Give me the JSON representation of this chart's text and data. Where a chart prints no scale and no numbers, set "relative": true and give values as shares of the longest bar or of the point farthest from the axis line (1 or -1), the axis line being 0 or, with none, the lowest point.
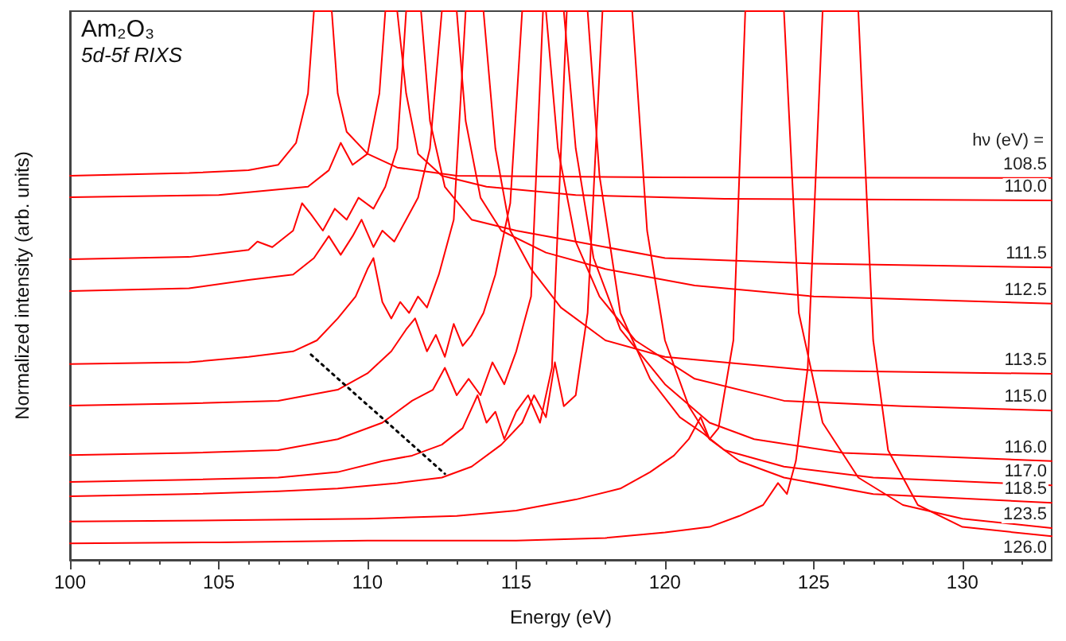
{
  "chart_data": {
    "type": "line",
    "title": "Am₂O₃",
    "subtitle": "5d-5f RIXS",
    "xlabel": "Energy (eV)",
    "ylabel": "Normalized intensity (arb. units)",
    "legend_title": "hν (eV) =",
    "relative": true,
    "xlim": [
      100,
      133
    ],
    "xticks": [
      100,
      105,
      110,
      115,
      120,
      125,
      130
    ],
    "grid": false,
    "marker": "none",
    "line_style": "solid",
    "series": [
      {
        "name": "108.5",
        "color": "#ff0000",
        "x": [
          100,
          104,
          106,
          107,
          107.6,
          108.0,
          108.2,
          108.8,
          109.0,
          109.3,
          110,
          111,
          113,
          120,
          133
        ],
        "values": [
          0.7,
          0.705,
          0.71,
          0.72,
          0.76,
          0.85,
          1.0,
          1.0,
          0.85,
          0.78,
          0.74,
          0.715,
          0.7,
          0.697,
          0.696
        ]
      },
      {
        "name": "110.0",
        "color": "#ff0000",
        "x": [
          100,
          105,
          108,
          108.7,
          109.1,
          109.5,
          110.0,
          110.4,
          110.6,
          111.0,
          111.3,
          111.7,
          112.5,
          114,
          117,
          122,
          133
        ],
        "values": [
          0.661,
          0.665,
          0.68,
          0.71,
          0.76,
          0.72,
          0.74,
          0.85,
          1.0,
          1.0,
          0.85,
          0.74,
          0.7,
          0.68,
          0.665,
          0.658,
          0.655
        ]
      },
      {
        "name": "111.5",
        "color": "#ff0000",
        "x": [
          100,
          104,
          106,
          106.3,
          106.8,
          107.5,
          107.8,
          108.1,
          108.5,
          108.9,
          109.3,
          109.7,
          110.2,
          110.6,
          111.0,
          111.3,
          111.8,
          112.1,
          112.6,
          113.5,
          115,
          117,
          120,
          125,
          133
        ],
        "values": [
          0.548,
          0.552,
          0.565,
          0.58,
          0.57,
          0.6,
          0.65,
          0.63,
          0.6,
          0.64,
          0.62,
          0.66,
          0.64,
          0.68,
          0.75,
          1.0,
          1.0,
          0.8,
          0.68,
          0.62,
          0.6,
          0.58,
          0.55,
          0.54,
          0.533
        ]
      },
      {
        "name": "112.5",
        "color": "#ff0000",
        "x": [
          100,
          104,
          106,
          107.5,
          108.2,
          108.7,
          109.1,
          109.5,
          109.8,
          110.2,
          110.5,
          110.9,
          111.3,
          111.7,
          112.1,
          112.5,
          113.0,
          113.3,
          113.8,
          114.5,
          116,
          118,
          121,
          125,
          133
        ],
        "values": [
          0.49,
          0.495,
          0.51,
          0.52,
          0.55,
          0.59,
          0.556,
          0.59,
          0.62,
          0.57,
          0.6,
          0.58,
          0.62,
          0.66,
          0.75,
          1.0,
          1.0,
          0.8,
          0.66,
          0.6,
          0.56,
          0.53,
          0.5,
          0.48,
          0.467
        ]
      },
      {
        "name": "113.5",
        "color": "#ff0000",
        "x": [
          100,
          104,
          106,
          107.5,
          108.3,
          109,
          109.6,
          110.0,
          110.2,
          110.5,
          110.8,
          111.1,
          111.4,
          111.7,
          112.0,
          112.4,
          112.9,
          113.3,
          113.9,
          114.3,
          114.8,
          115.5,
          116.5,
          118,
          120,
          125,
          133
        ],
        "values": [
          0.357,
          0.36,
          0.37,
          0.38,
          0.4,
          0.44,
          0.48,
          0.53,
          0.55,
          0.47,
          0.44,
          0.47,
          0.45,
          0.48,
          0.46,
          0.52,
          0.62,
          1.0,
          1.0,
          0.75,
          0.6,
          0.53,
          0.46,
          0.4,
          0.37,
          0.345,
          0.339
        ]
      },
      {
        "name": "115.0",
        "color": "#ff0000",
        "x": [
          100,
          104,
          107,
          109,
          110,
          110.8,
          111.3,
          111.6,
          112.0,
          112.3,
          112.6,
          112.9,
          113.2,
          113.5,
          113.9,
          114.3,
          114.8,
          115.2,
          116.0,
          116.4,
          117,
          117.8,
          119,
          121,
          124,
          128,
          133
        ],
        "values": [
          0.281,
          0.285,
          0.29,
          0.31,
          0.34,
          0.38,
          0.42,
          0.44,
          0.38,
          0.41,
          0.37,
          0.43,
          0.39,
          0.41,
          0.45,
          0.52,
          0.65,
          1.0,
          1.0,
          0.75,
          0.58,
          0.48,
          0.4,
          0.33,
          0.29,
          0.28,
          0.272
        ]
      },
      {
        "name": "116.0",
        "color": "#ff0000",
        "x": [
          100,
          104,
          107,
          109,
          110.5,
          111.5,
          112.2,
          112.6,
          113.0,
          113.4,
          113.8,
          114.2,
          114.6,
          115.0,
          115.5,
          115.9,
          116.6,
          117,
          117.6,
          118.5,
          120,
          121.5,
          123,
          126,
          133
        ],
        "values": [
          0.191,
          0.195,
          0.2,
          0.22,
          0.25,
          0.29,
          0.31,
          0.35,
          0.3,
          0.33,
          0.3,
          0.36,
          0.32,
          0.38,
          0.48,
          1.0,
          1.0,
          0.75,
          0.55,
          0.42,
          0.32,
          0.25,
          0.22,
          0.195,
          0.18
        ]
      },
      {
        "name": "117.0",
        "color": "#ff0000",
        "x": [
          100,
          104,
          107,
          109,
          110.5,
          111.5,
          112.5,
          113.2,
          113.7,
          114.0,
          114.3,
          114.6,
          115,
          115.4,
          115.8,
          116.2,
          116.7,
          117.4,
          117.8,
          118.5,
          119.5,
          120.5,
          121.3,
          122,
          124,
          127,
          133
        ],
        "values": [
          0.142,
          0.146,
          0.15,
          0.16,
          0.18,
          0.19,
          0.21,
          0.24,
          0.3,
          0.25,
          0.27,
          0.22,
          0.27,
          0.3,
          0.25,
          0.35,
          1.0,
          1.0,
          0.7,
          0.45,
          0.33,
          0.26,
          0.23,
          0.2,
          0.17,
          0.15,
          0.136
        ]
      },
      {
        "name": "118.5",
        "color": "#ff0000",
        "x": [
          100,
          104,
          107,
          109,
          111,
          112.5,
          113.5,
          114.5,
          115.2,
          115.6,
          116.0,
          116.3,
          116.6,
          117.0,
          117.4,
          117.9,
          118.9,
          119.4,
          120,
          120.8,
          121.5,
          122.5,
          124,
          127,
          133
        ],
        "values": [
          0.116,
          0.12,
          0.125,
          0.13,
          0.14,
          0.15,
          0.17,
          0.21,
          0.25,
          0.3,
          0.26,
          0.36,
          0.28,
          0.3,
          0.45,
          1.0,
          1.0,
          0.6,
          0.4,
          0.28,
          0.22,
          0.18,
          0.15,
          0.12,
          0.104
        ]
      },
      {
        "name": "123.5",
        "color": "#ff0000",
        "x": [
          100,
          105,
          110,
          113,
          115,
          117,
          118.5,
          119.5,
          120.3,
          120.8,
          121.2,
          121.5,
          121.8,
          122.3,
          122.7,
          124.0,
          124.5,
          125.3,
          126.5,
          128,
          130,
          133
        ],
        "values": [
          0.07,
          0.072,
          0.075,
          0.08,
          0.09,
          0.11,
          0.13,
          0.16,
          0.19,
          0.22,
          0.26,
          0.22,
          0.24,
          0.4,
          1.0,
          1.0,
          0.45,
          0.25,
          0.15,
          0.1,
          0.075,
          0.058
        ]
      },
      {
        "name": "126.0",
        "color": "#ff0000",
        "x": [
          100,
          105,
          110,
          115,
          118,
          120,
          121.5,
          122.5,
          123.3,
          123.8,
          124.1,
          124.4,
          124.8,
          125.3,
          126.5,
          127,
          127.5,
          128.5,
          130,
          133
        ],
        "values": [
          0.03,
          0.032,
          0.035,
          0.035,
          0.04,
          0.05,
          0.06,
          0.08,
          0.1,
          0.14,
          0.12,
          0.18,
          0.35,
          1.0,
          1.0,
          0.4,
          0.2,
          0.1,
          0.06,
          0.043
        ]
      },
      {
        "color": "#000000",
        "line_style": "dotted",
        "x": [
          108.1,
          112.6
        ],
        "values": [
          0.374,
          0.157
        ]
      }
    ]
  }
}
